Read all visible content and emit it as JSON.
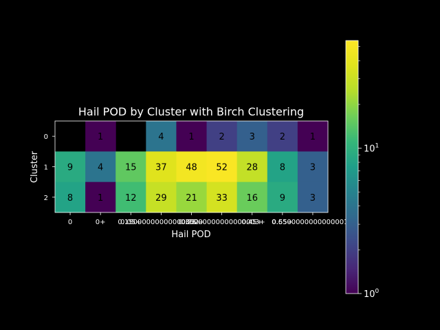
{
  "chart_data": {
    "type": "heatmap",
    "title": "Hail POD by Cluster with Birch Clustering",
    "xlabel": "Hail POD",
    "ylabel": "Cluster",
    "x_categories": [
      "0",
      "0+",
      "0.05+",
      "0.15+",
      "0.25+",
      "0.35+",
      "0.45+",
      "0.55+",
      "0.65+"
    ],
    "x_tick_labels": [
      "0",
      "0+",
      "0.05+",
      "0.15000000000000002+",
      "0.25+",
      "0.35000000000000003+",
      "0.45+",
      "0.55+",
      "0.6500000000000001+"
    ],
    "y_categories": [
      "0",
      "1",
      "2"
    ],
    "values": [
      [
        null,
        1,
        null,
        4,
        1,
        2,
        3,
        2,
        1
      ],
      [
        9,
        4,
        15,
        37,
        48,
        52,
        28,
        8,
        3
      ],
      [
        8,
        1,
        12,
        29,
        21,
        33,
        16,
        9,
        3
      ]
    ],
    "color_scale": "log",
    "colormap": "viridis",
    "clim": [
      1,
      55
    ],
    "colorbar": {
      "major_ticks": [
        {
          "value": 1,
          "base": "10",
          "exp": "0"
        },
        {
          "value": 10,
          "base": "10",
          "exp": "1"
        }
      ],
      "minor_ticks": [
        2,
        3,
        4,
        5,
        6,
        7,
        8,
        9,
        20,
        30,
        40,
        50
      ]
    }
  }
}
